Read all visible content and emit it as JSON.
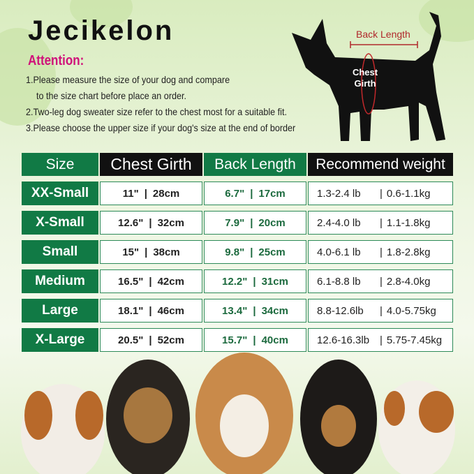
{
  "brand": "Jecikelon",
  "attention": "Attention:",
  "notes": [
    "1.Please measure the size of your dog and compare",
    "to the size chart before place an order.",
    "2.Two-leg dog sweater size refer to the chest most for a suitable fit.",
    "3.Please choose the upper size if your dog's size at the end of border"
  ],
  "diagram": {
    "back_length": "Back Length",
    "chest_girth": "Chest Girth"
  },
  "colors": {
    "green": "#117a45",
    "black": "#111111",
    "pink": "#d0127a",
    "red": "#b0282b"
  },
  "table": {
    "headers": [
      "Size",
      "Chest Girth",
      "Back Length",
      "Recommend weight"
    ],
    "rows": [
      {
        "size": "XX-Small",
        "chest_in": "11\"",
        "chest_cm": "28cm",
        "back_in": "6.7\"",
        "back_cm": "17cm",
        "w_lb": "1.3-2.4 lb",
        "w_kg": "0.6-1.1kg"
      },
      {
        "size": "X-Small",
        "chest_in": "12.6\"",
        "chest_cm": "32cm",
        "back_in": "7.9\"",
        "back_cm": "20cm",
        "w_lb": "2.4-4.0 lb",
        "w_kg": "1.1-1.8kg"
      },
      {
        "size": "Small",
        "chest_in": "15\"",
        "chest_cm": "38cm",
        "back_in": "9.8\"",
        "back_cm": "25cm",
        "w_lb": "4.0-6.1 lb",
        "w_kg": "1.8-2.8kg"
      },
      {
        "size": "Medium",
        "chest_in": "16.5\"",
        "chest_cm": "42cm",
        "back_in": "12.2\"",
        "back_cm": "31cm",
        "w_lb": "6.1-8.8 lb",
        "w_kg": "2.8-4.0kg"
      },
      {
        "size": "Large",
        "chest_in": "18.1\"",
        "chest_cm": "46cm",
        "back_in": "13.4\"",
        "back_cm": "34cm",
        "w_lb": "8.8-12.6lb",
        "w_kg": "4.0-5.75kg"
      },
      {
        "size": "X-Large",
        "chest_in": "20.5\"",
        "chest_cm": "52cm",
        "back_in": "15.7\"",
        "back_cm": "40cm",
        "w_lb": "12.6-16.3lb",
        "w_kg": "5.75-7.45kg"
      }
    ]
  }
}
